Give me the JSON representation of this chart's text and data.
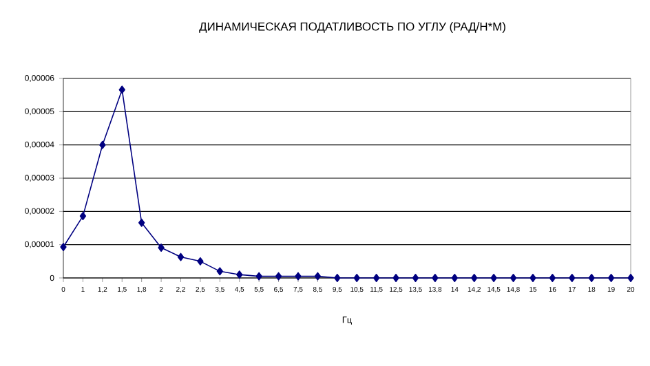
{
  "chart_data": {
    "type": "line",
    "title": "ДИНАМИЧЕСКАЯ ПОДАТЛИВОСТЬ ПО УГЛУ (РАД/Н*М)",
    "xlabel": "Гц",
    "categories": [
      "0",
      "1",
      "1,2",
      "1,5",
      "1,8",
      "2",
      "2,2",
      "2,5",
      "3,5",
      "4,5",
      "5,5",
      "6,5",
      "7,5",
      "8,5",
      "9,5",
      "10,5",
      "11,5",
      "12,5",
      "13,5",
      "13,8",
      "14",
      "14,2",
      "14,5",
      "14,8",
      "15",
      "16",
      "17",
      "18",
      "19",
      "20"
    ],
    "series": [
      {
        "color": "#000080",
        "values": [
          9.3e-06,
          1.86e-05,
          4e-05,
          5.66e-05,
          1.66e-05,
          9.1e-06,
          6.3e-06,
          5e-06,
          2e-06,
          1e-06,
          5e-07,
          5e-07,
          5e-07,
          5e-07,
          0,
          0,
          0,
          0,
          0,
          0,
          0,
          0,
          0,
          0,
          0,
          0,
          0,
          0,
          0,
          0
        ]
      }
    ],
    "ylim": [
      0,
      6e-05
    ],
    "yticks": [
      0,
      {
        "value": 1e-05,
        "label": "0,00001"
      },
      {
        "value": 2e-05,
        "label": "0,00002"
      },
      {
        "value": 3e-05,
        "label": "0,00003"
      },
      {
        "value": 4e-05,
        "label": "0,00004"
      },
      {
        "value": 5e-05,
        "label": "0,00005"
      },
      {
        "value": 6e-05,
        "label": "0,00006"
      }
    ],
    "grid": "y",
    "marker": "diamond",
    "line_style": "solid"
  }
}
